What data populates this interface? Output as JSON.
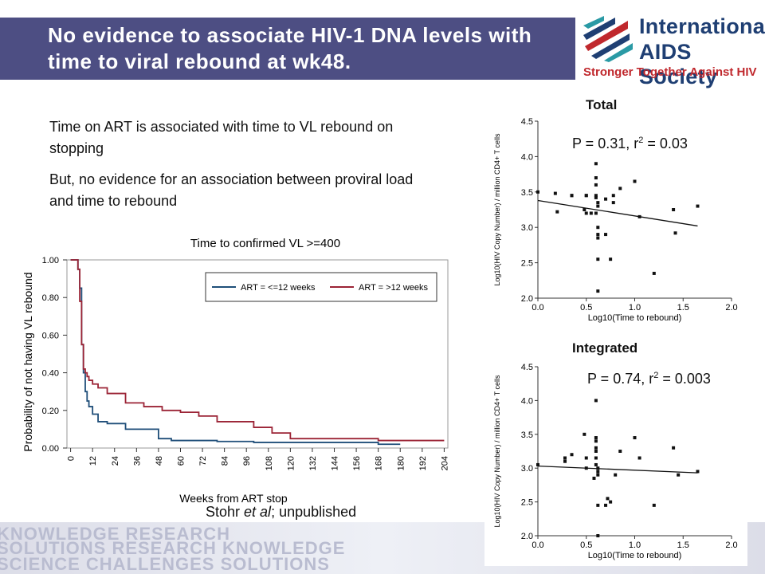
{
  "title": "No evidence to associate HIV-1 DNA levels with time to viral rebound at wk48.",
  "logo": {
    "line1": "International",
    "line2": "AIDS Society",
    "tagline": "Stronger Together Against HIV",
    "colors": {
      "navy": "#1f3f73",
      "red": "#c0282d",
      "teal": "#2a9aa5"
    }
  },
  "bullets": [
    "Time on ART is associated with time to VL rebound on stopping",
    "But, no evidence for an association between proviral load and time to rebound"
  ],
  "citation": {
    "author": "Stohr ",
    "etal": "et al",
    "rest": "; unpublished"
  },
  "footer_words": [
    "KNOWLEDGE RESEARCH",
    "SOLUTIONS RESEARCH KNOWLEDGE",
    "SCIENCE CHALLENGES SOLUTIONS"
  ],
  "chart_data": [
    {
      "type": "line",
      "title": "Time to confirmed VL >=400",
      "xlabel": "Weeks from ART stop",
      "ylabel": "Probability of not having VL rebound",
      "x_ticks": [
        "0",
        "12",
        "24",
        "36",
        "48",
        "60",
        "72",
        "84",
        "96",
        "108",
        "120",
        "132",
        "144",
        "156",
        "168",
        "180",
        "192",
        "204"
      ],
      "y_ticks": [
        "0.00",
        "0.20",
        "0.40",
        "0.60",
        "0.80",
        "1.00"
      ],
      "xlim": [
        -2,
        206
      ],
      "ylim": [
        0,
        1.0
      ],
      "legend_position": "top-right",
      "series": [
        {
          "name": "ART = <=12 weeks",
          "color": "#1f4e79",
          "x": [
            2,
            4,
            5,
            6,
            7,
            8,
            9,
            10,
            12,
            15,
            20,
            30,
            48,
            55,
            60,
            80,
            100,
            110,
            168,
            180
          ],
          "y": [
            1.0,
            0.95,
            0.85,
            0.55,
            0.4,
            0.3,
            0.25,
            0.22,
            0.18,
            0.14,
            0.13,
            0.1,
            0.05,
            0.04,
            0.04,
            0.035,
            0.03,
            0.03,
            0.02,
            0.02
          ]
        },
        {
          "name": "ART = >12 weeks",
          "color": "#9b2335",
          "x": [
            2,
            4,
            5,
            6,
            7,
            8,
            9,
            10,
            12,
            15,
            20,
            30,
            40,
            50,
            60,
            70,
            80,
            100,
            110,
            120,
            168,
            204
          ],
          "y": [
            1.0,
            0.95,
            0.78,
            0.55,
            0.42,
            0.4,
            0.38,
            0.36,
            0.34,
            0.32,
            0.29,
            0.24,
            0.22,
            0.2,
            0.19,
            0.17,
            0.14,
            0.11,
            0.08,
            0.05,
            0.04,
            0.04
          ]
        }
      ]
    },
    {
      "type": "scatter",
      "panel_label": "Total",
      "annotation": "P = 0.31, r",
      "annotation_sup": "2",
      "annotation_end": " = 0.03",
      "xlabel": "Log10(Time to rebound)",
      "ylabel": "Log10(HIV Copy Number) / million CD4+ T cells",
      "x_ticks": [
        "0.0",
        "0.5",
        "1.0",
        "1.5",
        "2.0"
      ],
      "y_ticks": [
        "2.0",
        "2.5",
        "3.0",
        "3.5",
        "4.0",
        "4.5"
      ],
      "xlim": [
        0,
        2.0
      ],
      "ylim": [
        2.0,
        4.5
      ],
      "x": [
        0,
        0.18,
        0.2,
        0.35,
        0.35,
        0.48,
        0.5,
        0.5,
        0.5,
        0.55,
        0.6,
        0.6,
        0.6,
        0.6,
        0.6,
        0.6,
        0.62,
        0.62,
        0.62,
        0.62,
        0.62,
        0.62,
        0.62,
        0.7,
        0.7,
        0.75,
        0.78,
        0.78,
        0.85,
        1.0,
        1.05,
        1.2,
        1.4,
        1.42,
        1.65
      ],
      "y": [
        3.5,
        3.48,
        3.22,
        3.45,
        3.45,
        3.25,
        3.2,
        3.45,
        3.45,
        3.2,
        3.9,
        3.7,
        3.6,
        3.45,
        3.42,
        3.2,
        3.0,
        2.9,
        2.85,
        2.55,
        2.1,
        3.3,
        3.35,
        2.9,
        3.4,
        2.55,
        3.45,
        3.35,
        3.55,
        3.65,
        3.15,
        2.35,
        3.25,
        2.92,
        3.3
      ],
      "fit": {
        "x": [
          0,
          1.65
        ],
        "y": [
          3.38,
          3.02
        ]
      }
    },
    {
      "type": "scatter",
      "panel_label": "Integrated",
      "annotation": "P = 0.74, r",
      "annotation_sup": "2",
      "annotation_end": " = 0.003",
      "xlabel": "Log10(Time to rebound)",
      "ylabel": "Log10(HIV Copy Number) / million CD4+ T cells",
      "x_ticks": [
        "0.0",
        "0.5",
        "1.0",
        "1.5",
        "2.0"
      ],
      "y_ticks": [
        "2.0",
        "2.5",
        "3.0",
        "3.5",
        "4.0",
        "4.5"
      ],
      "xlim": [
        0,
        2.0
      ],
      "ylim": [
        2.0,
        4.5
      ],
      "x": [
        0,
        0.28,
        0.28,
        0.35,
        0.48,
        0.5,
        0.5,
        0.58,
        0.6,
        0.6,
        0.6,
        0.6,
        0.6,
        0.6,
        0.6,
        0.62,
        0.62,
        0.62,
        0.62,
        0.62,
        0.7,
        0.72,
        0.75,
        0.8,
        0.85,
        1.0,
        1.05,
        1.2,
        1.4,
        1.45,
        1.65
      ],
      "y": [
        3.05,
        3.15,
        3.1,
        3.2,
        3.5,
        3.15,
        3.0,
        2.85,
        4.0,
        3.45,
        3.4,
        3.3,
        3.25,
        3.15,
        3.05,
        3.0,
        2.95,
        2.9,
        2.45,
        2.0,
        2.45,
        2.55,
        2.5,
        2.9,
        3.25,
        3.45,
        3.15,
        2.45,
        3.3,
        2.9,
        2.95
      ],
      "fit": {
        "x": [
          0,
          1.65
        ],
        "y": [
          3.03,
          2.93
        ]
      }
    }
  ]
}
